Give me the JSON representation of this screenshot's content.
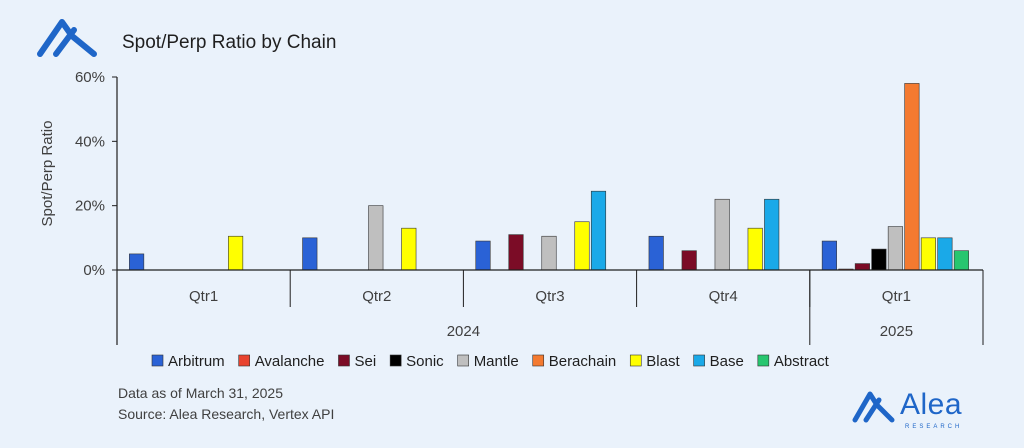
{
  "header": {
    "title": "Spot/Perp Ratio by Chain"
  },
  "footer": {
    "note": "Data as of March 31, 2025",
    "source": "Source: Alea Research, Vertex API",
    "brand_name": "Alea",
    "brand_sub": "RESEARCH"
  },
  "chart_data": {
    "type": "bar",
    "title": "Spot/Perp Ratio by Chain",
    "ylabel": "Spot/Perp Ratio",
    "ylim": [
      0,
      60
    ],
    "yticks": [
      "0%",
      "20%",
      "40%",
      "60%"
    ],
    "quarters": [
      "Qtr1",
      "Qtr2",
      "Qtr3",
      "Qtr4",
      "Qtr1"
    ],
    "years": [
      {
        "label": "2024",
        "quarters": 4
      },
      {
        "label": "2025",
        "quarters": 1
      }
    ],
    "legend_position": "bottom",
    "series": [
      {
        "name": "Arbitrum",
        "color": "#2a62d6",
        "values": [
          5,
          10,
          9,
          10.5,
          9
        ]
      },
      {
        "name": "Avalanche",
        "color": "#e8432f",
        "values": [
          0,
          0,
          0,
          0,
          0.3
        ]
      },
      {
        "name": "Sei",
        "color": "#7b0c26",
        "values": [
          0,
          0,
          11,
          6,
          2
        ]
      },
      {
        "name": "Sonic",
        "color": "#000000",
        "values": [
          0,
          0,
          0,
          0,
          6.5
        ]
      },
      {
        "name": "Mantle",
        "color": "#bfbfbf",
        "values": [
          0,
          20,
          10.5,
          22,
          13.5
        ]
      },
      {
        "name": "Berachain",
        "color": "#f47a30",
        "values": [
          0,
          0,
          0,
          0,
          58
        ]
      },
      {
        "name": "Blast",
        "color": "#ffff00",
        "values": [
          10.5,
          13,
          15,
          13,
          10
        ]
      },
      {
        "name": "Base",
        "color": "#1aa9e8",
        "values": [
          0,
          0,
          24.5,
          22,
          10
        ]
      },
      {
        "name": "Abstract",
        "color": "#27c66f",
        "values": [
          0,
          0,
          0,
          0,
          6
        ]
      }
    ]
  }
}
